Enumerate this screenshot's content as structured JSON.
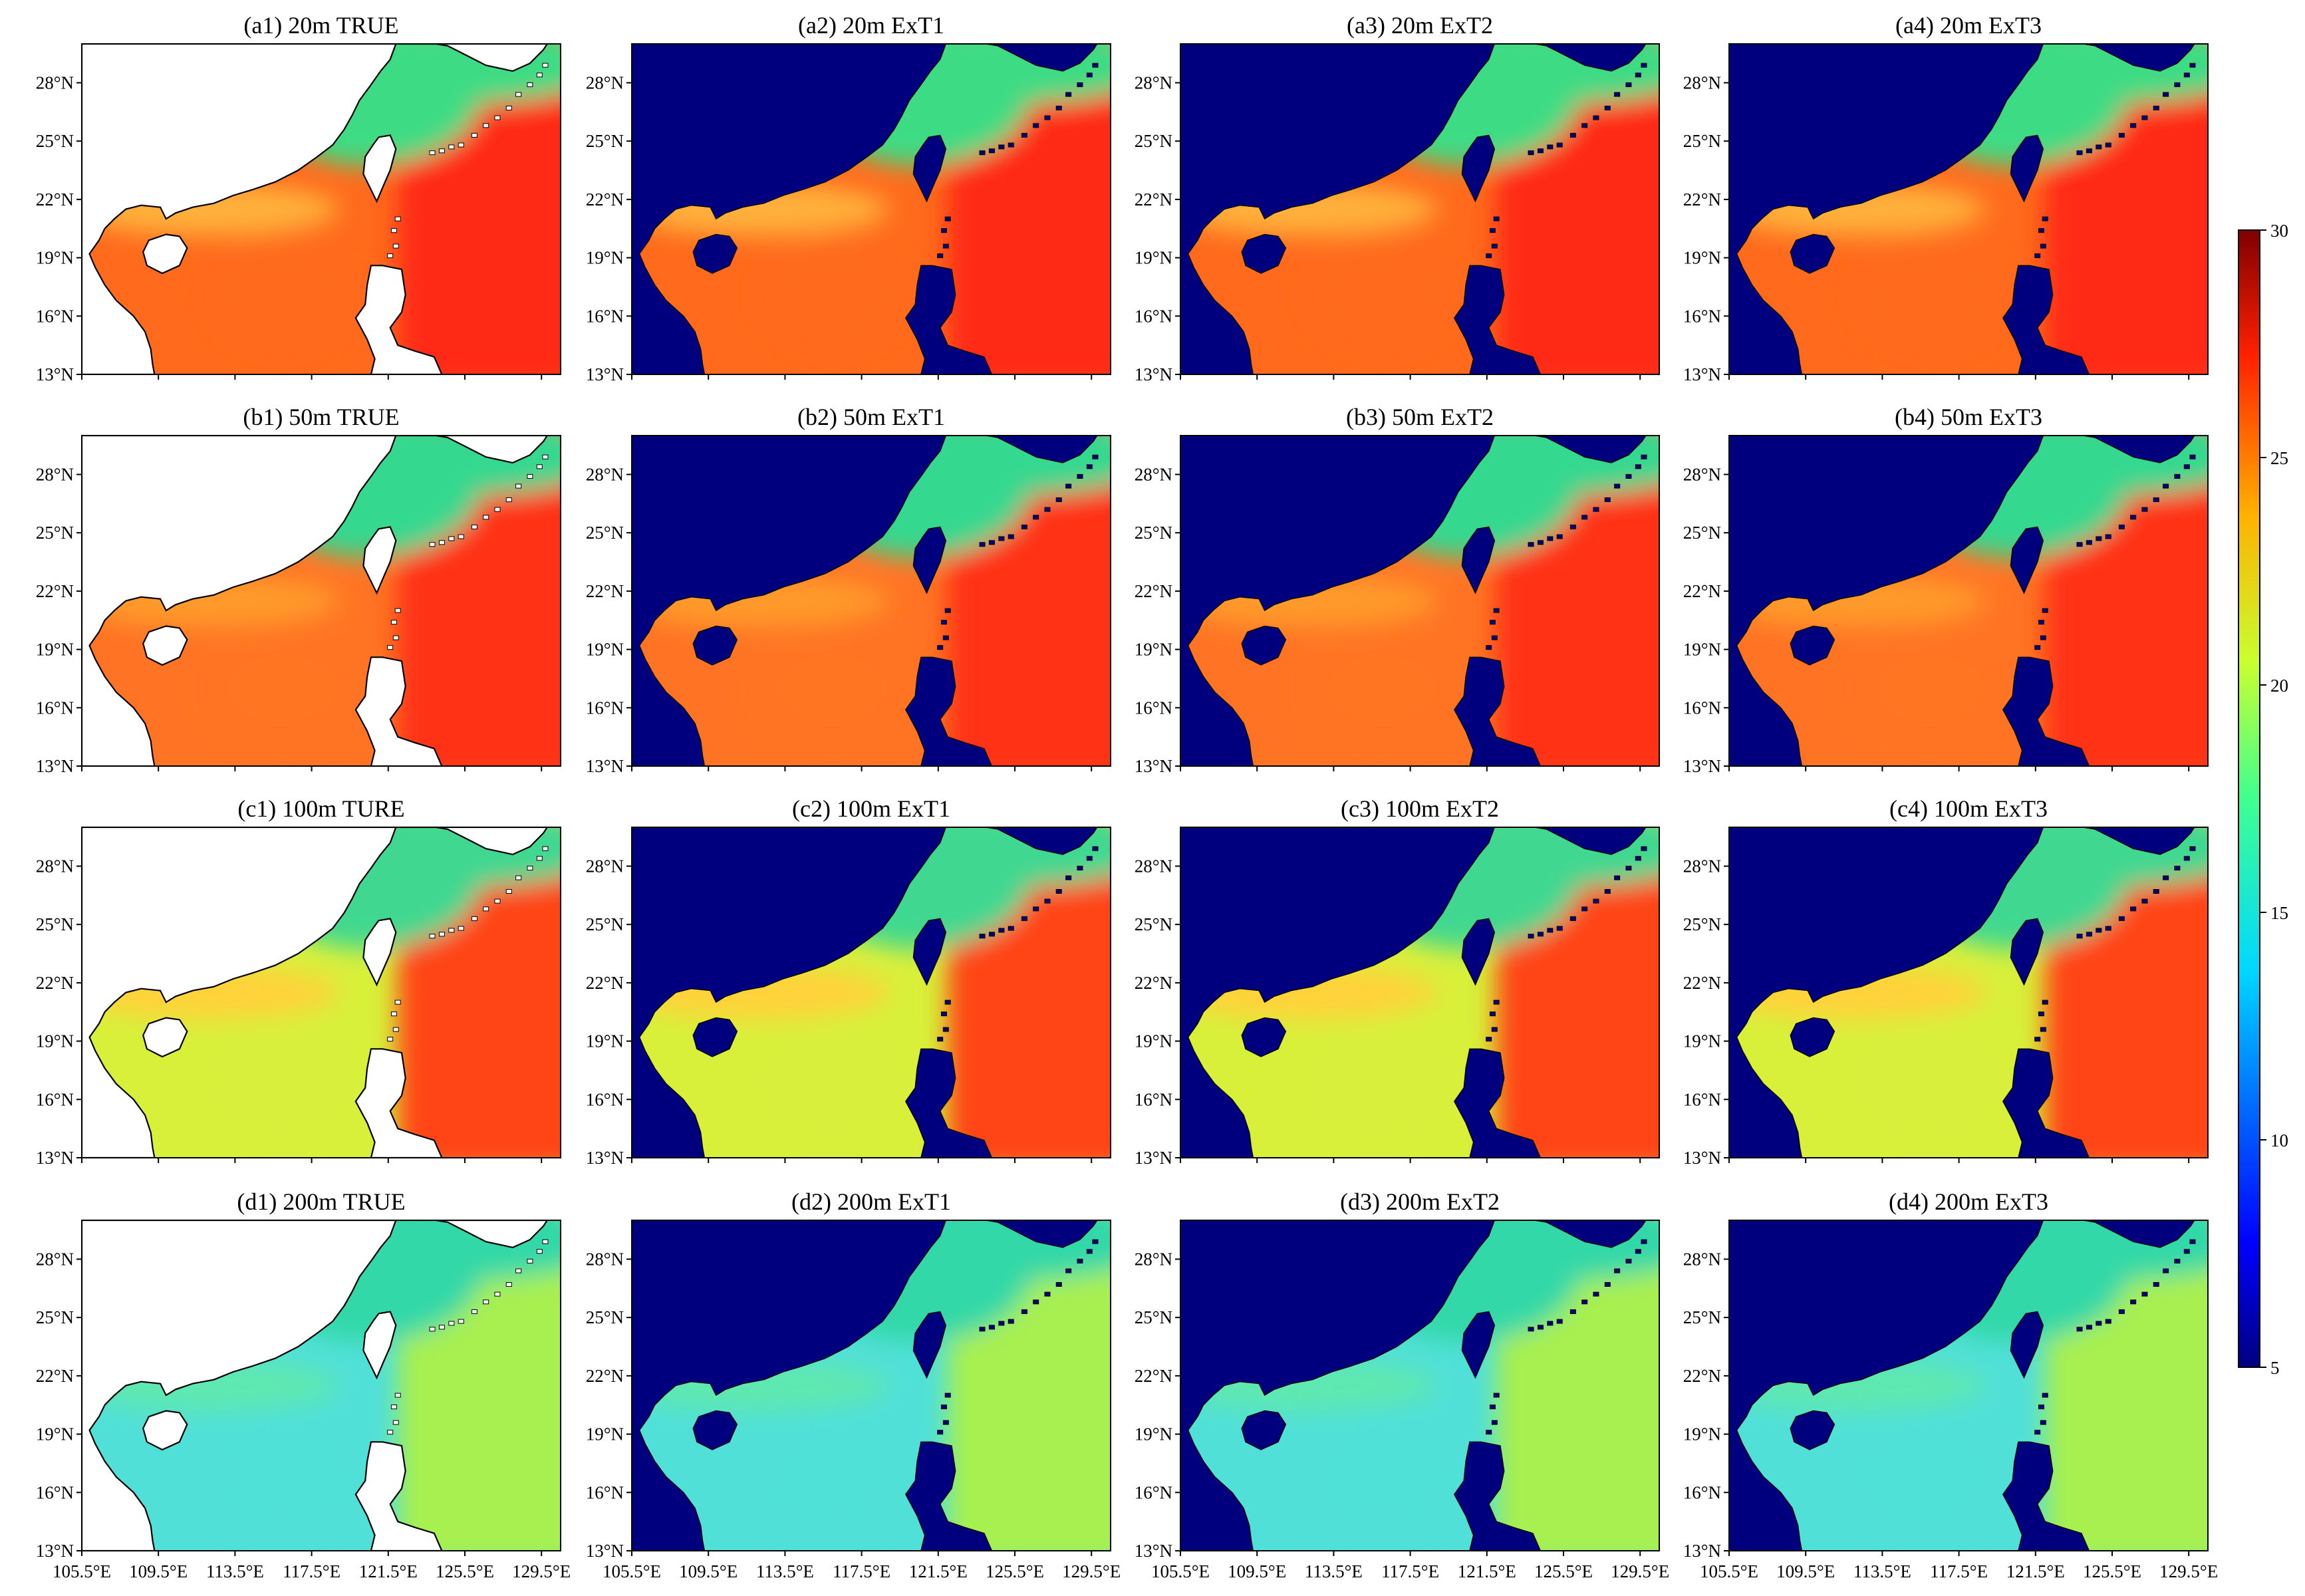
{
  "chart_data": {
    "type": "heatmap",
    "description_units": "temperature",
    "panels": [
      {
        "id": "a1",
        "title": "(a1) 20m TRUE",
        "depth": "20m",
        "source": "TRUE",
        "land": "white",
        "coast": "#ffb03b",
        "coastal_band": "#3ddc84",
        "interior": "#ff6a1c",
        "southeast": "#ff2a14"
      },
      {
        "id": "a2",
        "title": "(a2) 20m ExT1",
        "depth": "20m",
        "source": "ExT1",
        "land": "navy",
        "coast": "#ffb03b",
        "coastal_band": "#3ddc84",
        "interior": "#ff6a1c",
        "southeast": "#ff2a14"
      },
      {
        "id": "a3",
        "title": "(a3) 20m ExT2",
        "depth": "20m",
        "source": "ExT2",
        "land": "navy",
        "coast": "#ffb03b",
        "coastal_band": "#3ddc84",
        "interior": "#ff6a1c",
        "southeast": "#ff2a14"
      },
      {
        "id": "a4",
        "title": "(a4) 20m ExT3",
        "depth": "20m",
        "source": "ExT3",
        "land": "navy",
        "coast": "#ffb03b",
        "coastal_band": "#3ddc84",
        "interior": "#ff6a1c",
        "southeast": "#ff2a14"
      },
      {
        "id": "b1",
        "title": "(b1) 50m TRUE",
        "depth": "50m",
        "source": "TRUE",
        "land": "white",
        "coast": "#ff9a2c",
        "coastal_band": "#35d88f",
        "interior": "#ff7424",
        "southeast": "#ff3318"
      },
      {
        "id": "b2",
        "title": "(b2) 50m ExT1",
        "depth": "50m",
        "source": "ExT1",
        "land": "navy",
        "coast": "#ff9a2c",
        "coastal_band": "#35d88f",
        "interior": "#ff7424",
        "southeast": "#ff3318"
      },
      {
        "id": "b3",
        "title": "(b3) 50m ExT2",
        "depth": "50m",
        "source": "ExT2",
        "land": "navy",
        "coast": "#ff9a2c",
        "coastal_band": "#35d88f",
        "interior": "#ff7424",
        "southeast": "#ff3318"
      },
      {
        "id": "b4",
        "title": "(b4) 50m ExT3",
        "depth": "50m",
        "source": "ExT3",
        "land": "navy",
        "coast": "#ff9a2c",
        "coastal_band": "#35d88f",
        "interior": "#ff7424",
        "southeast": "#ff3318"
      },
      {
        "id": "c1",
        "title": "(c1) 100m TURE",
        "depth": "100m",
        "source": "TRUE",
        "land": "white",
        "coast": "#ffd23a",
        "coastal_band": "#40d890",
        "interior": "#d8f03a",
        "southeast": "#ff4418"
      },
      {
        "id": "c2",
        "title": "(c2) 100m ExT1",
        "depth": "100m",
        "source": "ExT1",
        "land": "navy",
        "coast": "#ffd23a",
        "coastal_band": "#40d890",
        "interior": "#d8f03a",
        "southeast": "#ff4418"
      },
      {
        "id": "c3",
        "title": "(c3) 100m ExT2",
        "depth": "100m",
        "source": "ExT2",
        "land": "navy",
        "coast": "#ffd23a",
        "coastal_band": "#40d890",
        "interior": "#d8f03a",
        "southeast": "#ff4418"
      },
      {
        "id": "c4",
        "title": "(c4) 100m ExT3",
        "depth": "100m",
        "source": "ExT3",
        "land": "navy",
        "coast": "#ffd23a",
        "coastal_band": "#40d890",
        "interior": "#d8f03a",
        "southeast": "#ff4418"
      },
      {
        "id": "d1",
        "title": "(d1) 200m TRUE",
        "depth": "200m",
        "source": "TRUE",
        "land": "white",
        "coast": "#5ee8b0",
        "coastal_band": "#30d8a8",
        "interior": "#50e0d8",
        "southeast": "#a8f050"
      },
      {
        "id": "d2",
        "title": "(d2) 200m ExT1",
        "depth": "200m",
        "source": "ExT1",
        "land": "navy",
        "coast": "#5ee8b0",
        "coastal_band": "#30d8a8",
        "interior": "#50e0d8",
        "southeast": "#a8f050"
      },
      {
        "id": "d3",
        "title": "(d3) 200m ExT2",
        "depth": "200m",
        "source": "ExT2",
        "land": "navy",
        "coast": "#5ee8b0",
        "coastal_band": "#30d8a8",
        "interior": "#50e0d8",
        "southeast": "#a8f050"
      },
      {
        "id": "d4",
        "title": "(d4) 200m ExT3",
        "depth": "200m",
        "source": "ExT3",
        "land": "navy",
        "coast": "#5ee8b0",
        "coastal_band": "#30d8a8",
        "interior": "#50e0d8",
        "southeast": "#a8f050"
      }
    ],
    "x_ticks": [
      "105.5°E",
      "109.5°E",
      "113.5°E",
      "117.5°E",
      "121.5°E",
      "125.5°E",
      "129.5°E"
    ],
    "x_tick_values": [
      105.5,
      109.5,
      113.5,
      117.5,
      121.5,
      125.5,
      129.5
    ],
    "y_ticks": [
      "28°N",
      "25°N",
      "22°N",
      "19°N",
      "16°N",
      "13°N"
    ],
    "y_tick_values": [
      28,
      25,
      22,
      19,
      16,
      13
    ],
    "lon_range": [
      105.5,
      130.5
    ],
    "lat_range": [
      13,
      30
    ],
    "colorbar": {
      "ticks": [
        "30",
        "25",
        "20",
        "15",
        "10",
        "5"
      ],
      "tick_values": [
        30,
        25,
        20,
        15,
        10,
        5
      ],
      "range": [
        5,
        30
      ],
      "colormap": "jet"
    },
    "colors": {
      "navy": "#00007f",
      "white": "#ffffff",
      "coastline": "#000000"
    }
  }
}
